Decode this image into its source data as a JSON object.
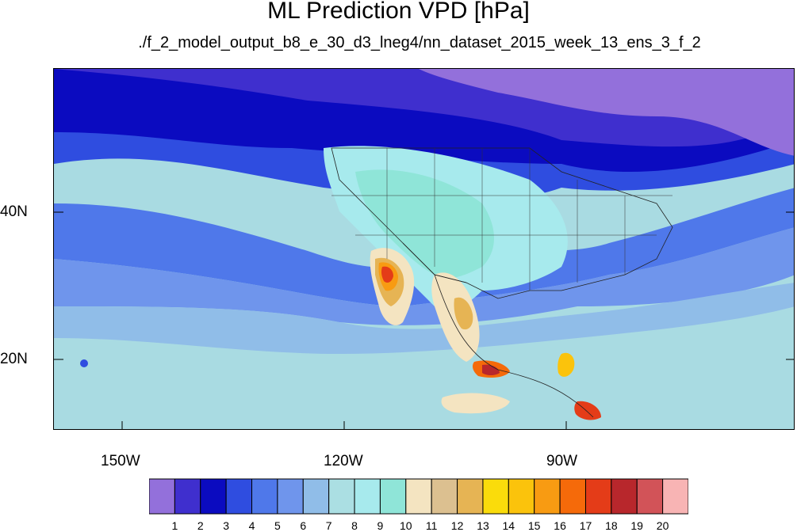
{
  "title": "ML Prediction VPD [hPa]",
  "subtitle": "./f_2_model_output_b8_e_30_d3_lneg4/nn_dataset_2015_week_13_ens_3_f_2",
  "axes": {
    "lon_labels": [
      "150W",
      "120W",
      "90W"
    ],
    "lat_labels": [
      "40N",
      "20N"
    ]
  },
  "colorbar": {
    "labels": [
      "1",
      "2",
      "3",
      "4",
      "5",
      "6",
      "7",
      "8",
      "9",
      "10",
      "11",
      "12",
      "13",
      "14",
      "15",
      "16",
      "17",
      "18",
      "19",
      "20"
    ],
    "colors": [
      "#9370db",
      "#3f2fce",
      "#0b0bc0",
      "#2f4de0",
      "#4f78ea",
      "#6f95ec",
      "#90bde8",
      "#abdfe3",
      "#a7eaed",
      "#8fe5d8",
      "#f4e4c1",
      "#dcc090",
      "#e6b454",
      "#fadc0b",
      "#fbc30c",
      "#f89b12",
      "#f56a0a",
      "#e43c18",
      "#b8272c",
      "#d25358",
      "#f8b4b4"
    ]
  },
  "map_legend": {
    "region": "North America / Eastern Pacific",
    "grid_lines": "lat/lon ticks every 10 degrees",
    "features": [
      "coastlines",
      "country borders",
      "US state borders",
      "Mexican state borders"
    ]
  }
}
